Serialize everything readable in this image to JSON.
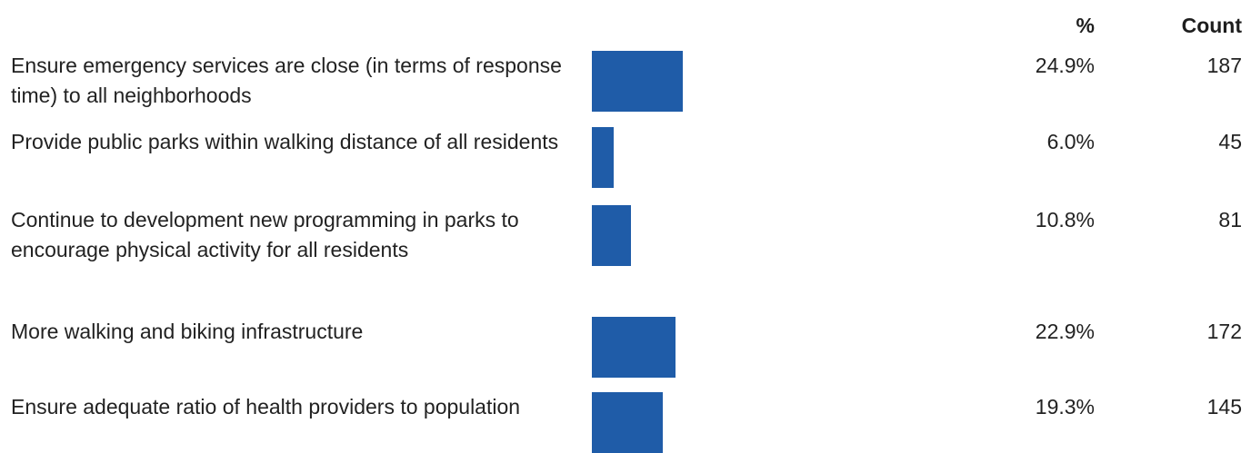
{
  "chart_data": {
    "type": "bar",
    "orientation": "horizontal",
    "columns": {
      "percent": "%",
      "count": "Count"
    },
    "categories": [
      "Ensure emergency services are close (in terms of response time) to all neighborhoods",
      "Provide public parks within walking distance of all residents",
      "Continue to development new programming in parks to encourage physical activity for all residents",
      "More walking and biking infrastructure",
      "Ensure adequate ratio of health providers to population"
    ],
    "percent_labels": [
      "24.9%",
      "6.0%",
      "10.8%",
      "22.9%",
      "19.3%"
    ],
    "values": [
      24.9,
      6.0,
      10.8,
      22.9,
      19.3
    ],
    "counts": [
      187,
      45,
      81,
      172,
      145
    ],
    "bar_color": "#1f5ca8",
    "grid": false
  }
}
